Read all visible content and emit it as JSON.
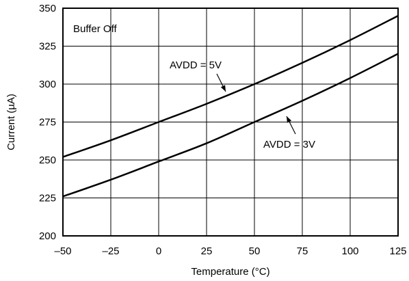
{
  "chart_data": {
    "type": "line",
    "xlabel": "Temperature (°C)",
    "ylabel": "Current (µA)",
    "xlim": [
      -50,
      125
    ],
    "ylim": [
      200,
      350
    ],
    "xticks": [
      -50,
      -25,
      0,
      25,
      50,
      75,
      100,
      125
    ],
    "yticks": [
      200,
      225,
      250,
      275,
      300,
      325,
      350
    ],
    "xtick_labels": [
      "–50",
      "–25",
      "0",
      "25",
      "50",
      "75",
      "100",
      "125"
    ],
    "ytick_labels": [
      "200",
      "225",
      "250",
      "275",
      "300",
      "325",
      "350"
    ],
    "grid": true,
    "annotations": [
      {
        "text": "Buffer Off"
      },
      {
        "text": "AVDD = 5V",
        "series": 0
      },
      {
        "text": "AVDD = 3V",
        "series": 1
      }
    ],
    "x": [
      -50,
      -25,
      0,
      25,
      50,
      75,
      100,
      125
    ],
    "series": [
      {
        "values": [
          252,
          263,
          275,
          287,
          300,
          314,
          329,
          345
        ],
        "color": "#000000"
      },
      {
        "values": [
          226,
          237,
          249,
          261,
          275,
          289,
          304,
          320
        ],
        "color": "#000000"
      }
    ]
  }
}
